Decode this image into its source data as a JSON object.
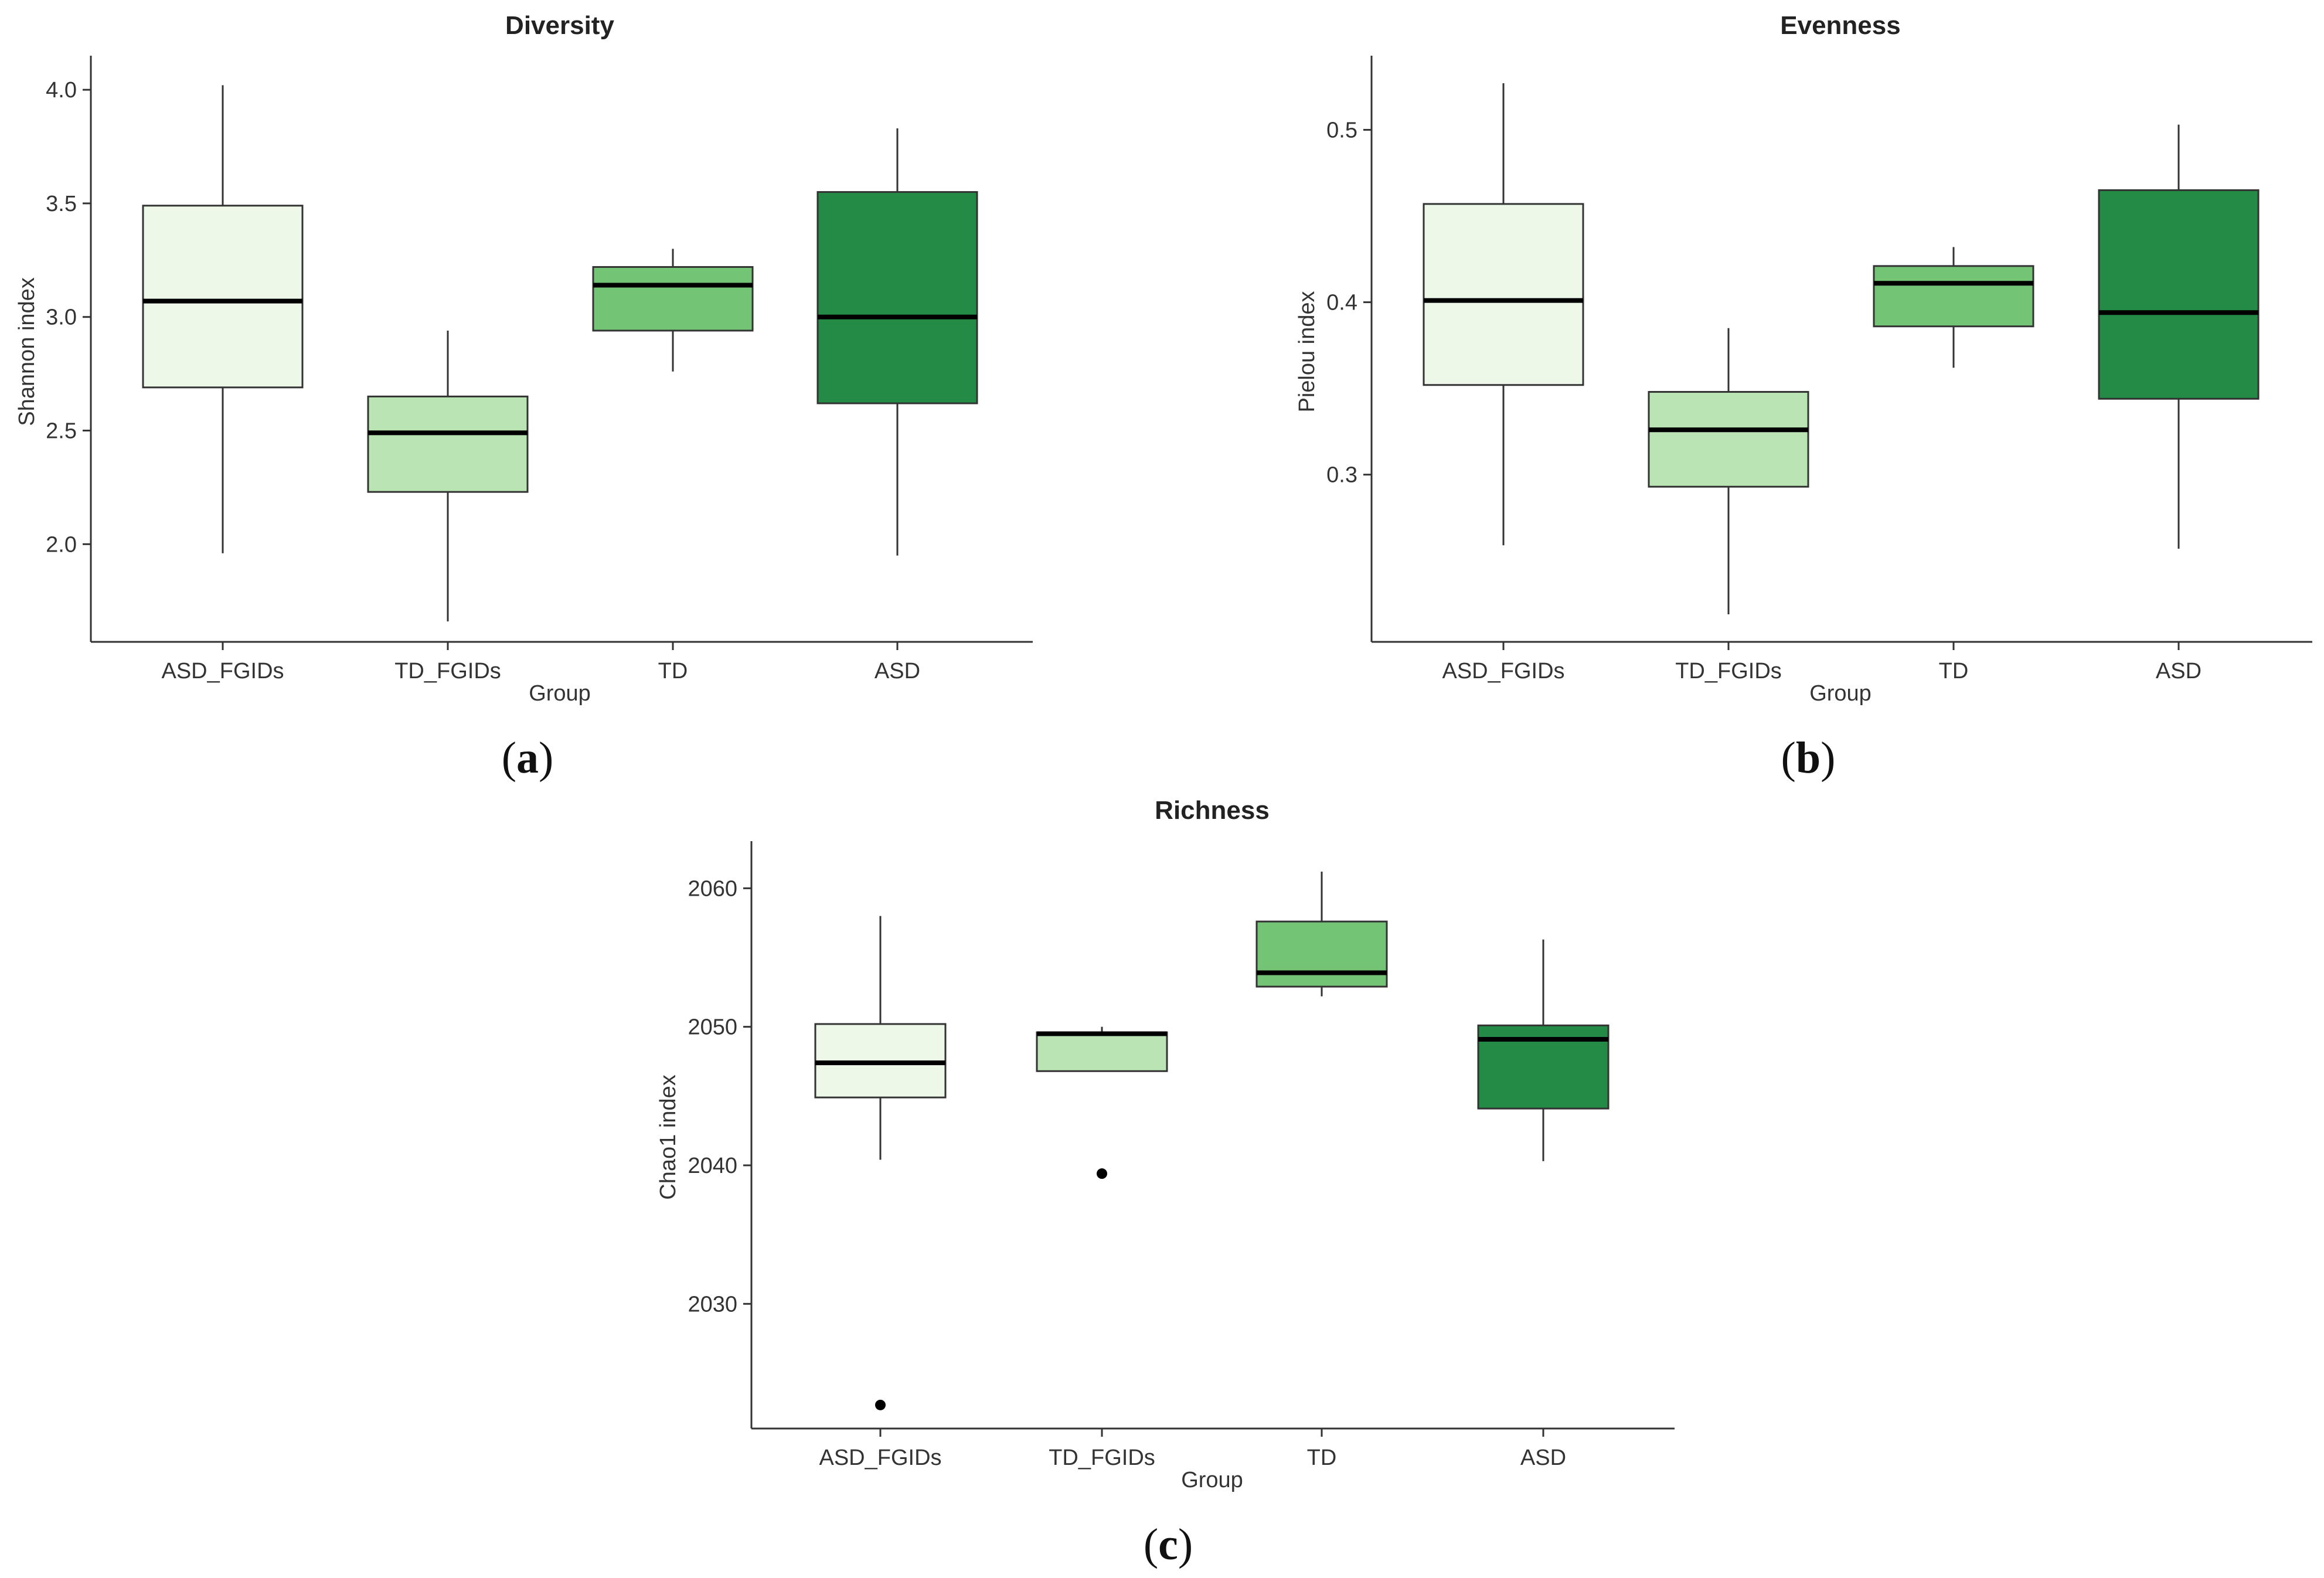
{
  "chart_data": [
    {
      "type": "box",
      "panel_label": "a",
      "title": "Diversity",
      "xlabel": "Group",
      "ylabel": "Shannon index",
      "ylim": [
        1.57,
        4.15
      ],
      "yticks": [
        2.0,
        2.5,
        3.0,
        3.5,
        4.0
      ],
      "ytick_labels": [
        "2.0",
        "2.5",
        "3.0",
        "3.5",
        "4.0"
      ],
      "categories": [
        "ASD_FGIDs",
        "TD_FGIDs",
        "TD",
        "ASD"
      ],
      "boxes": [
        {
          "group": "ASD_FGIDs",
          "whisker_low": 1.96,
          "q1": 2.69,
          "median": 3.07,
          "q3": 3.49,
          "whisker_high": 4.02,
          "outliers": [],
          "color": "#edf8e9"
        },
        {
          "group": "TD_FGIDs",
          "whisker_low": 1.66,
          "q1": 2.23,
          "median": 2.49,
          "q3": 2.65,
          "whisker_high": 2.94,
          "outliers": [],
          "color": "#bae4b3"
        },
        {
          "group": "TD",
          "whisker_low": 2.76,
          "q1": 2.94,
          "median": 3.14,
          "q3": 3.22,
          "whisker_high": 3.3,
          "outliers": [],
          "color": "#74c476"
        },
        {
          "group": "ASD",
          "whisker_low": 1.95,
          "q1": 2.62,
          "median": 3.0,
          "q3": 3.55,
          "whisker_high": 3.83,
          "outliers": [],
          "color": "#238b45"
        }
      ]
    },
    {
      "type": "box",
      "panel_label": "b",
      "title": "Evenness",
      "xlabel": "Group",
      "ylabel": "Pielou index",
      "ylim": [
        0.203,
        0.543
      ],
      "yticks": [
        0.3,
        0.4,
        0.5
      ],
      "ytick_labels": [
        "0.3",
        "0.4",
        "0.5"
      ],
      "categories": [
        "ASD_FGIDs",
        "TD_FGIDs",
        "TD",
        "ASD"
      ],
      "boxes": [
        {
          "group": "ASD_FGIDs",
          "whisker_low": 0.259,
          "q1": 0.352,
          "median": 0.401,
          "q3": 0.457,
          "whisker_high": 0.527,
          "outliers": [],
          "color": "#edf8e9"
        },
        {
          "group": "TD_FGIDs",
          "whisker_low": 0.219,
          "q1": 0.293,
          "median": 0.326,
          "q3": 0.348,
          "whisker_high": 0.385,
          "outliers": [],
          "color": "#bae4b3"
        },
        {
          "group": "TD",
          "whisker_low": 0.362,
          "q1": 0.386,
          "median": 0.411,
          "q3": 0.421,
          "whisker_high": 0.432,
          "outliers": [],
          "color": "#74c476"
        },
        {
          "group": "ASD",
          "whisker_low": 0.257,
          "q1": 0.344,
          "median": 0.394,
          "q3": 0.465,
          "whisker_high": 0.503,
          "outliers": [],
          "color": "#238b45"
        }
      ]
    },
    {
      "type": "box",
      "panel_label": "c",
      "title": "Richness",
      "xlabel": "Group",
      "ylabel": "Chao1 index",
      "ylim": [
        2021.0,
        2063.4
      ],
      "yticks": [
        2030,
        2040,
        2050,
        2060
      ],
      "ytick_labels": [
        "2030",
        "2040",
        "2050",
        "2060"
      ],
      "categories": [
        "ASD_FGIDs",
        "TD_FGIDs",
        "TD",
        "ASD"
      ],
      "boxes": [
        {
          "group": "ASD_FGIDs",
          "whisker_low": 2040.4,
          "q1": 2044.9,
          "median": 2047.4,
          "q3": 2050.2,
          "whisker_high": 2058.0,
          "outliers": [
            2022.7
          ],
          "color": "#edf8e9"
        },
        {
          "group": "TD_FGIDs",
          "whisker_low": 2046.8,
          "q1": 2046.8,
          "median": 2049.5,
          "q3": 2049.6,
          "whisker_high": 2050.0,
          "outliers": [
            2039.4
          ],
          "color": "#bae4b3"
        },
        {
          "group": "TD",
          "whisker_low": 2052.2,
          "q1": 2052.9,
          "median": 2053.9,
          "q3": 2057.6,
          "whisker_high": 2061.2,
          "outliers": [],
          "color": "#74c476"
        },
        {
          "group": "ASD",
          "whisker_low": 2040.3,
          "q1": 2044.1,
          "median": 2049.1,
          "q3": 2050.1,
          "whisker_high": 2056.3,
          "outliers": [],
          "color": "#238b45"
        }
      ]
    }
  ]
}
